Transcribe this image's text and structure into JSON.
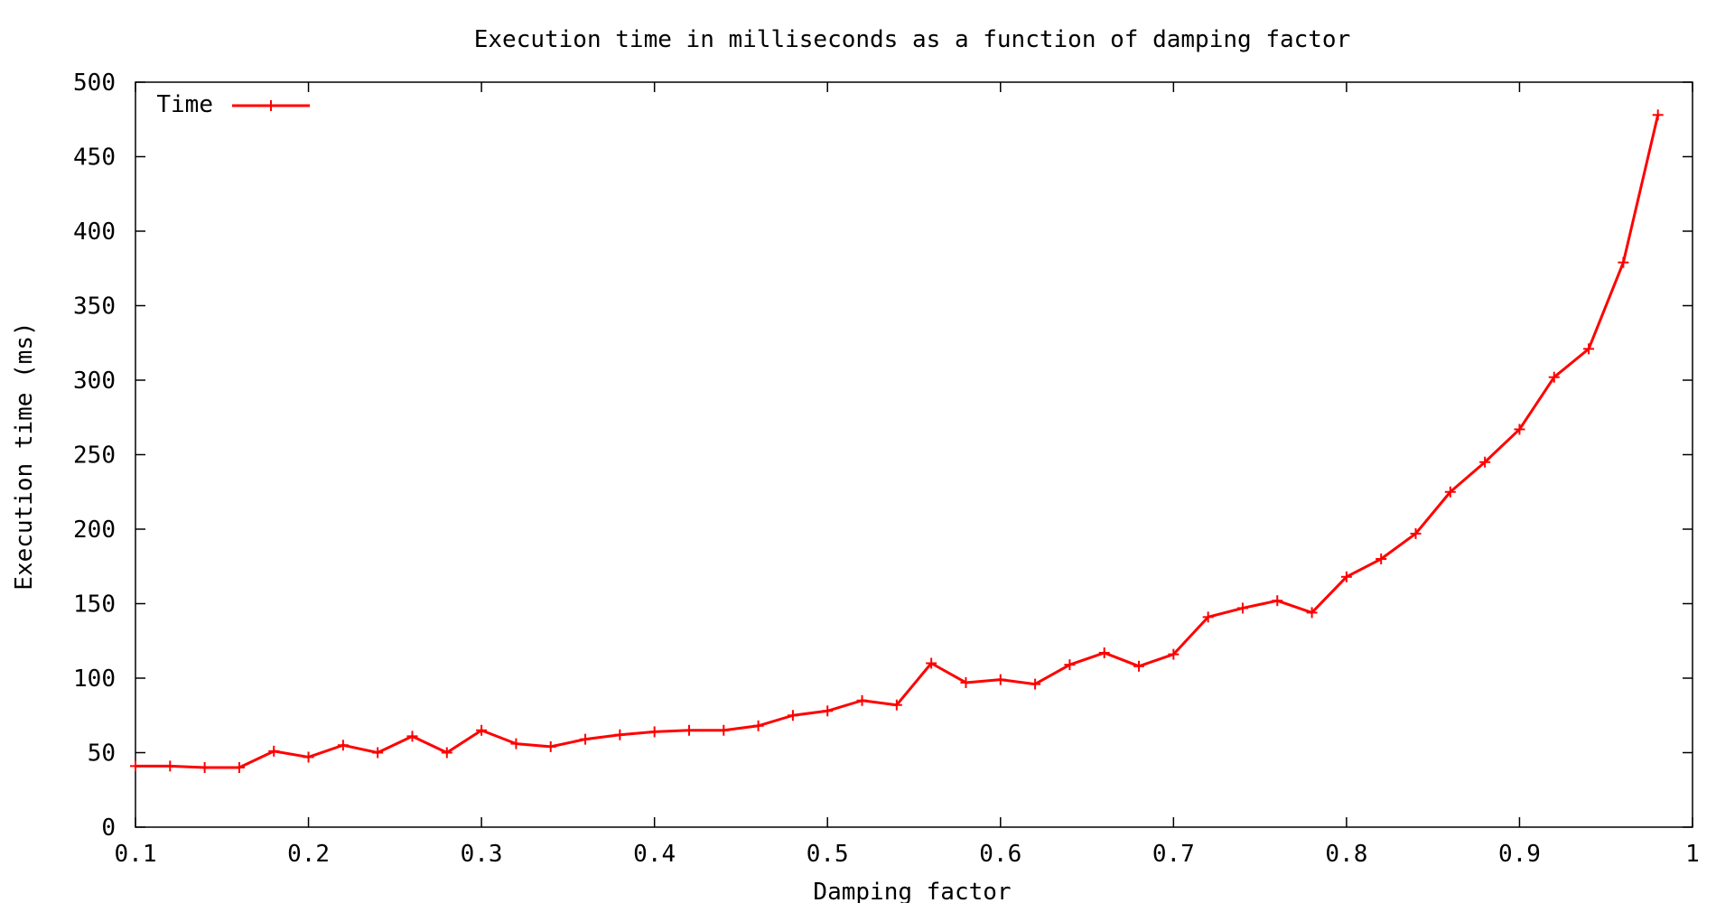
{
  "chart_data": {
    "type": "line",
    "title": "Execution time in milliseconds as a function of damping factor",
    "xlabel": "Damping factor",
    "ylabel": "Execution time (ms)",
    "xlim": [
      0.1,
      1
    ],
    "ylim": [
      0,
      500
    ],
    "x_ticks": [
      0.1,
      0.2,
      0.3,
      0.4,
      0.5,
      0.6,
      0.7,
      0.8,
      0.9,
      1
    ],
    "x_tick_labels": [
      "0.1",
      "0.2",
      "0.3",
      "0.4",
      "0.5",
      "0.6",
      "0.7",
      "0.8",
      "0.9",
      "1"
    ],
    "y_ticks": [
      0,
      50,
      100,
      150,
      200,
      250,
      300,
      350,
      400,
      450,
      500
    ],
    "y_tick_labels": [
      "0",
      "50",
      "100",
      "150",
      "200",
      "250",
      "300",
      "350",
      "400",
      "450",
      "500"
    ],
    "grid": false,
    "legend_position": "top-left",
    "series": [
      {
        "name": "Time",
        "color": "#ff0000",
        "marker": "plus",
        "x": [
          0.1,
          0.12,
          0.14,
          0.16,
          0.18,
          0.2,
          0.22,
          0.24,
          0.26,
          0.28,
          0.3,
          0.32,
          0.34,
          0.36,
          0.38,
          0.4,
          0.42,
          0.44,
          0.46,
          0.48,
          0.5,
          0.52,
          0.54,
          0.56,
          0.58,
          0.6,
          0.62,
          0.64,
          0.66,
          0.68,
          0.7,
          0.72,
          0.74,
          0.76,
          0.78,
          0.8,
          0.82,
          0.84,
          0.86,
          0.88,
          0.9,
          0.92,
          0.94,
          0.96,
          0.98
        ],
        "values": [
          41,
          41,
          40,
          40,
          51,
          47,
          55,
          50,
          61,
          50,
          65,
          56,
          54,
          59,
          62,
          64,
          65,
          65,
          68,
          75,
          78,
          85,
          82,
          110,
          97,
          99,
          96,
          109,
          117,
          108,
          116,
          141,
          147,
          152,
          144,
          168,
          180,
          197,
          225,
          245,
          267,
          302,
          321,
          379,
          478
        ]
      }
    ]
  }
}
